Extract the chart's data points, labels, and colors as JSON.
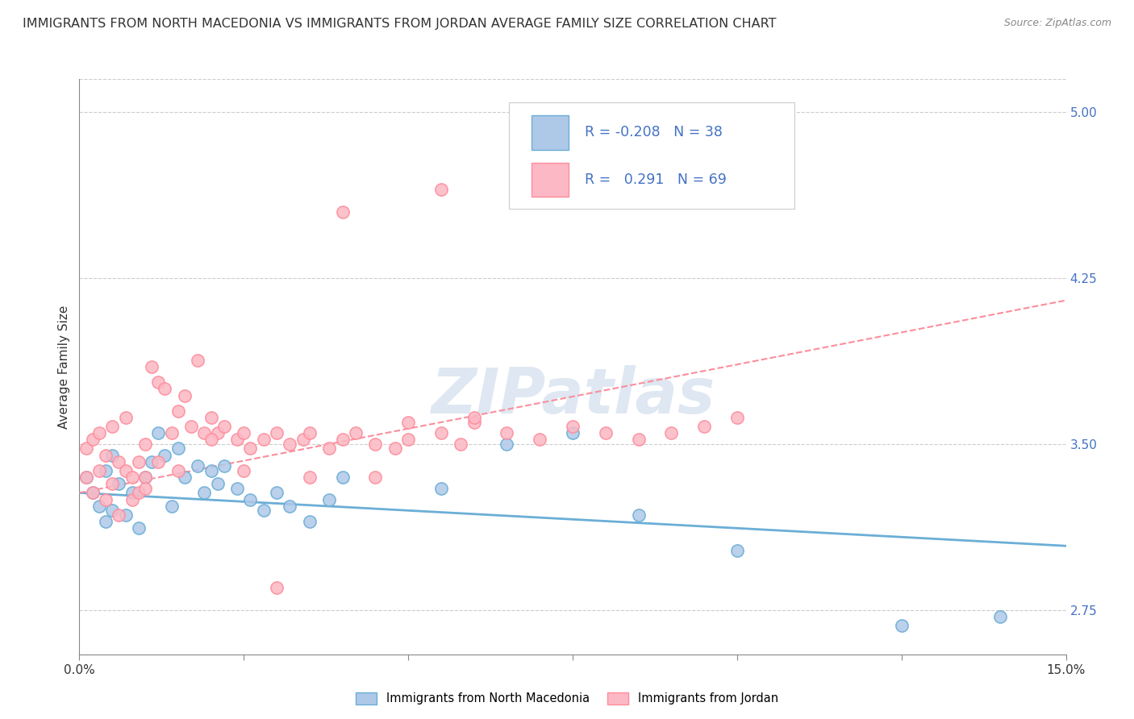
{
  "title": "IMMIGRANTS FROM NORTH MACEDONIA VS IMMIGRANTS FROM JORDAN AVERAGE FAMILY SIZE CORRELATION CHART",
  "source": "Source: ZipAtlas.com",
  "ylabel": "Average Family Size",
  "legend_label1": "Immigrants from North Macedonia",
  "legend_label2": "Immigrants from Jordan",
  "R1": -0.208,
  "N1": 38,
  "R2": 0.291,
  "N2": 69,
  "color1": "#6baed6",
  "color2": "#fc8d9c",
  "color1_light": "#aec8e8",
  "color2_light": "#fcb8c4",
  "title_fontsize": 11.5,
  "watermark": "ZIPatlas",
  "xlim": [
    0.0,
    0.15
  ],
  "ylim": [
    2.55,
    5.15
  ],
  "right_yticks": [
    2.75,
    3.5,
    4.25,
    5.0
  ],
  "right_ytick_labels": [
    "2.75",
    "3.50",
    "4.25",
    "5.00"
  ],
  "grid_color": "#cccccc",
  "background_color": "#ffffff",
  "trend1_x0": 0.0,
  "trend1_y0": 3.28,
  "trend1_x1": 0.15,
  "trend1_y1": 3.04,
  "trend2_x0": 0.0,
  "trend2_y0": 3.28,
  "trend2_x1": 0.15,
  "trend2_y1": 4.15,
  "scatter1_x": [
    0.001,
    0.002,
    0.003,
    0.004,
    0.004,
    0.005,
    0.005,
    0.006,
    0.007,
    0.008,
    0.009,
    0.01,
    0.011,
    0.012,
    0.013,
    0.014,
    0.015,
    0.016,
    0.018,
    0.019,
    0.02,
    0.021,
    0.022,
    0.024,
    0.026,
    0.028,
    0.03,
    0.032,
    0.035,
    0.038,
    0.04,
    0.055,
    0.065,
    0.075,
    0.085,
    0.1,
    0.125,
    0.14
  ],
  "scatter1_y": [
    3.35,
    3.28,
    3.22,
    3.38,
    3.15,
    3.45,
    3.2,
    3.32,
    3.18,
    3.28,
    3.12,
    3.35,
    3.42,
    3.55,
    3.45,
    3.22,
    3.48,
    3.35,
    3.4,
    3.28,
    3.38,
    3.32,
    3.4,
    3.3,
    3.25,
    3.2,
    3.28,
    3.22,
    3.15,
    3.25,
    3.35,
    3.3,
    3.5,
    3.55,
    3.18,
    3.02,
    2.68,
    2.72
  ],
  "scatter2_x": [
    0.001,
    0.001,
    0.002,
    0.002,
    0.003,
    0.003,
    0.004,
    0.004,
    0.005,
    0.005,
    0.006,
    0.006,
    0.007,
    0.007,
    0.008,
    0.008,
    0.009,
    0.009,
    0.01,
    0.01,
    0.011,
    0.012,
    0.012,
    0.013,
    0.014,
    0.015,
    0.016,
    0.017,
    0.018,
    0.019,
    0.02,
    0.021,
    0.022,
    0.024,
    0.025,
    0.026,
    0.028,
    0.03,
    0.032,
    0.034,
    0.035,
    0.038,
    0.04,
    0.042,
    0.045,
    0.048,
    0.05,
    0.055,
    0.058,
    0.06,
    0.065,
    0.07,
    0.075,
    0.08,
    0.085,
    0.09,
    0.095,
    0.1,
    0.01,
    0.015,
    0.02,
    0.025,
    0.03,
    0.035,
    0.04,
    0.045,
    0.05,
    0.055,
    0.06
  ],
  "scatter2_y": [
    3.35,
    3.48,
    3.52,
    3.28,
    3.55,
    3.38,
    3.45,
    3.25,
    3.58,
    3.32,
    3.42,
    3.18,
    3.38,
    3.62,
    3.35,
    3.25,
    3.42,
    3.28,
    3.5,
    3.35,
    3.85,
    3.78,
    3.42,
    3.75,
    3.55,
    3.65,
    3.72,
    3.58,
    3.88,
    3.55,
    3.62,
    3.55,
    3.58,
    3.52,
    3.55,
    3.48,
    3.52,
    3.55,
    3.5,
    3.52,
    3.55,
    3.48,
    3.52,
    3.55,
    3.5,
    3.48,
    3.52,
    3.55,
    3.5,
    3.6,
    3.55,
    3.52,
    3.58,
    3.55,
    3.52,
    3.55,
    3.58,
    3.62,
    3.3,
    3.38,
    3.52,
    3.38,
    2.85,
    3.35,
    4.55,
    3.35,
    3.6,
    4.65,
    3.62
  ]
}
